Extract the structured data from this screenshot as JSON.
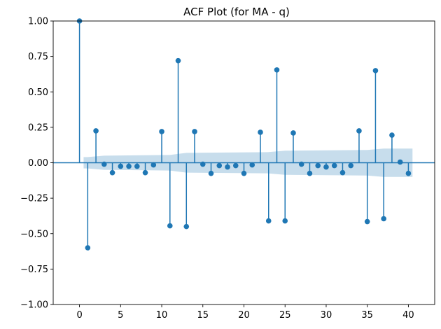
{
  "chart_data": {
    "type": "stem",
    "title": "ACF Plot (for MA - q)",
    "xlabel": "",
    "ylabel": "",
    "xlim": [
      -3.2,
      43.2
    ],
    "ylim": [
      -1.0,
      1.0
    ],
    "xticks": [
      0,
      5,
      10,
      15,
      20,
      25,
      30,
      35,
      40
    ],
    "xtick_labels": [
      "0",
      "5",
      "10",
      "15",
      "20",
      "25",
      "30",
      "35",
      "40"
    ],
    "yticks": [
      1.0,
      0.75,
      0.5,
      0.25,
      0.0,
      -0.25,
      -0.5,
      -0.75,
      -1.0
    ],
    "ytick_labels": [
      "1.00",
      "0.75",
      "0.50",
      "0.25",
      "0.00",
      "−0.25",
      "−0.50",
      "−0.75",
      "−1.00"
    ],
    "grid": false,
    "colors": {
      "marker": "#1f77b4",
      "confidence_band": "#1f77b4"
    },
    "lags": [
      0,
      1,
      2,
      3,
      4,
      5,
      6,
      7,
      8,
      9,
      10,
      11,
      12,
      13,
      14,
      15,
      16,
      17,
      18,
      19,
      20,
      21,
      22,
      23,
      24,
      25,
      26,
      27,
      28,
      29,
      30,
      31,
      32,
      33,
      34,
      35,
      36,
      37,
      38,
      39,
      40
    ],
    "acf": [
      1.0,
      -0.6,
      0.225,
      -0.01,
      -0.07,
      -0.025,
      -0.025,
      -0.025,
      -0.07,
      -0.015,
      0.22,
      -0.445,
      0.72,
      -0.45,
      0.22,
      -0.01,
      -0.075,
      -0.02,
      -0.03,
      -0.02,
      -0.075,
      -0.015,
      0.215,
      -0.41,
      0.655,
      -0.41,
      0.21,
      -0.01,
      -0.075,
      -0.02,
      -0.03,
      -0.02,
      -0.07,
      -0.02,
      0.225,
      -0.415,
      0.65,
      -0.395,
      0.195,
      0.005,
      -0.075
    ],
    "confidence_band": {
      "lag_start": 0.5,
      "lags": [
        1,
        3,
        11,
        13,
        23,
        25,
        35,
        37,
        40.5
      ],
      "half_width": [
        0.04,
        0.05,
        0.055,
        0.07,
        0.075,
        0.085,
        0.09,
        0.1,
        0.1
      ]
    }
  }
}
